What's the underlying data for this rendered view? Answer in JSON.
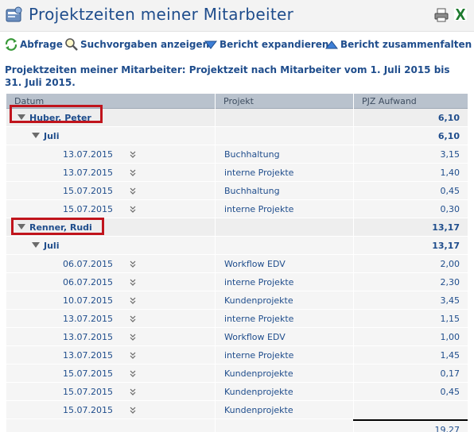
{
  "header": {
    "title": "Projektzeiten meiner Mitarbeiter"
  },
  "toolbar": {
    "query_label": "Abfrage",
    "search_defaults_label": "Suchvorgaben anzeigen",
    "expand_label": "Bericht expandieren",
    "collapse_label": "Bericht zusammenfalten"
  },
  "report": {
    "heading": "Projektzeiten meiner Mitarbeiter: Projektzeit nach Mitarbeiter vom 1. Juli 2015 bis 31. Juli 2015."
  },
  "table": {
    "columns": [
      "Datum",
      "Projekt",
      "PJZ Aufwand"
    ],
    "groups": [
      {
        "name": "Huber, Peter",
        "total": "6,10",
        "month": "Juli",
        "month_total": "6,10",
        "rows": [
          {
            "date": "13.07.2015",
            "project": "Buchhaltung",
            "amount": "3,15"
          },
          {
            "date": "13.07.2015",
            "project": "interne Projekte",
            "amount": "1,40"
          },
          {
            "date": "15.07.2015",
            "project": "Buchhaltung",
            "amount": "0,45"
          },
          {
            "date": "15.07.2015",
            "project": "interne Projekte",
            "amount": "0,30"
          }
        ]
      },
      {
        "name": "Renner, Rudi",
        "total": "13,17",
        "month": "Juli",
        "month_total": "13,17",
        "rows": [
          {
            "date": "06.07.2015",
            "project": "Workflow EDV",
            "amount": "2,00"
          },
          {
            "date": "06.07.2015",
            "project": "interne Projekte",
            "amount": "2,30"
          },
          {
            "date": "10.07.2015",
            "project": "Kundenprojekte",
            "amount": "3,45"
          },
          {
            "date": "13.07.2015",
            "project": "interne Projekte",
            "amount": "1,15"
          },
          {
            "date": "13.07.2015",
            "project": "Workflow EDV",
            "amount": "1,00"
          },
          {
            "date": "13.07.2015",
            "project": "interne Projekte",
            "amount": "1,45"
          },
          {
            "date": "15.07.2015",
            "project": "Kundenprojekte",
            "amount": "0,17"
          },
          {
            "date": "15.07.2015",
            "project": "Kundenprojekte",
            "amount": "0,45"
          },
          {
            "date": "15.07.2015",
            "project": "Kundenprojekte",
            "amount": ""
          }
        ]
      }
    ],
    "grand_total": "19,27"
  },
  "colors": {
    "accent": "#1f4d8c",
    "highlight": "#c0141c",
    "header_bg": "#b9c2cd"
  }
}
